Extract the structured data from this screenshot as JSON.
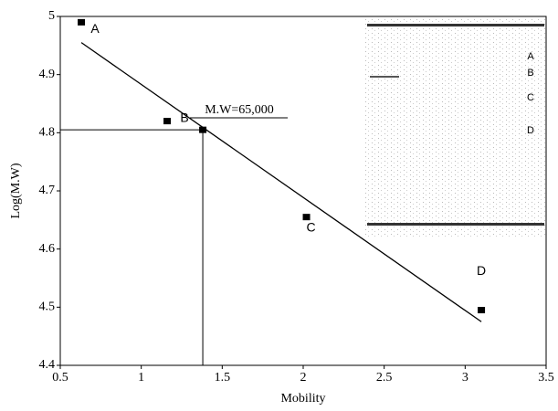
{
  "chart_data": {
    "type": "scatter",
    "xlabel": "Mobility",
    "ylabel": "Log(M.W)",
    "xlim": [
      0.5,
      3.5
    ],
    "xticks": [
      0.5,
      1,
      1.5,
      2,
      2.5,
      3,
      3.5
    ],
    "ylim": [
      4.4,
      5
    ],
    "yticks": [
      4.4,
      4.5,
      4.6,
      4.7,
      4.8,
      4.9,
      5
    ],
    "color": "#000000",
    "points": {
      "x": [
        0.63,
        1.16,
        1.38,
        2.02,
        3.1
      ],
      "y": [
        4.99,
        4.82,
        4.805,
        4.655,
        4.495
      ],
      "labels": [
        "A",
        "B",
        null,
        "C",
        "D"
      ]
    },
    "fit_line": {
      "x": [
        0.63,
        3.1
      ],
      "y": [
        4.955,
        4.475
      ]
    },
    "reference": {
      "x": 1.38,
      "y": 4.805,
      "label": "M.W=65,000"
    },
    "gel_labels": [
      "A",
      "B",
      "C",
      "D"
    ]
  }
}
